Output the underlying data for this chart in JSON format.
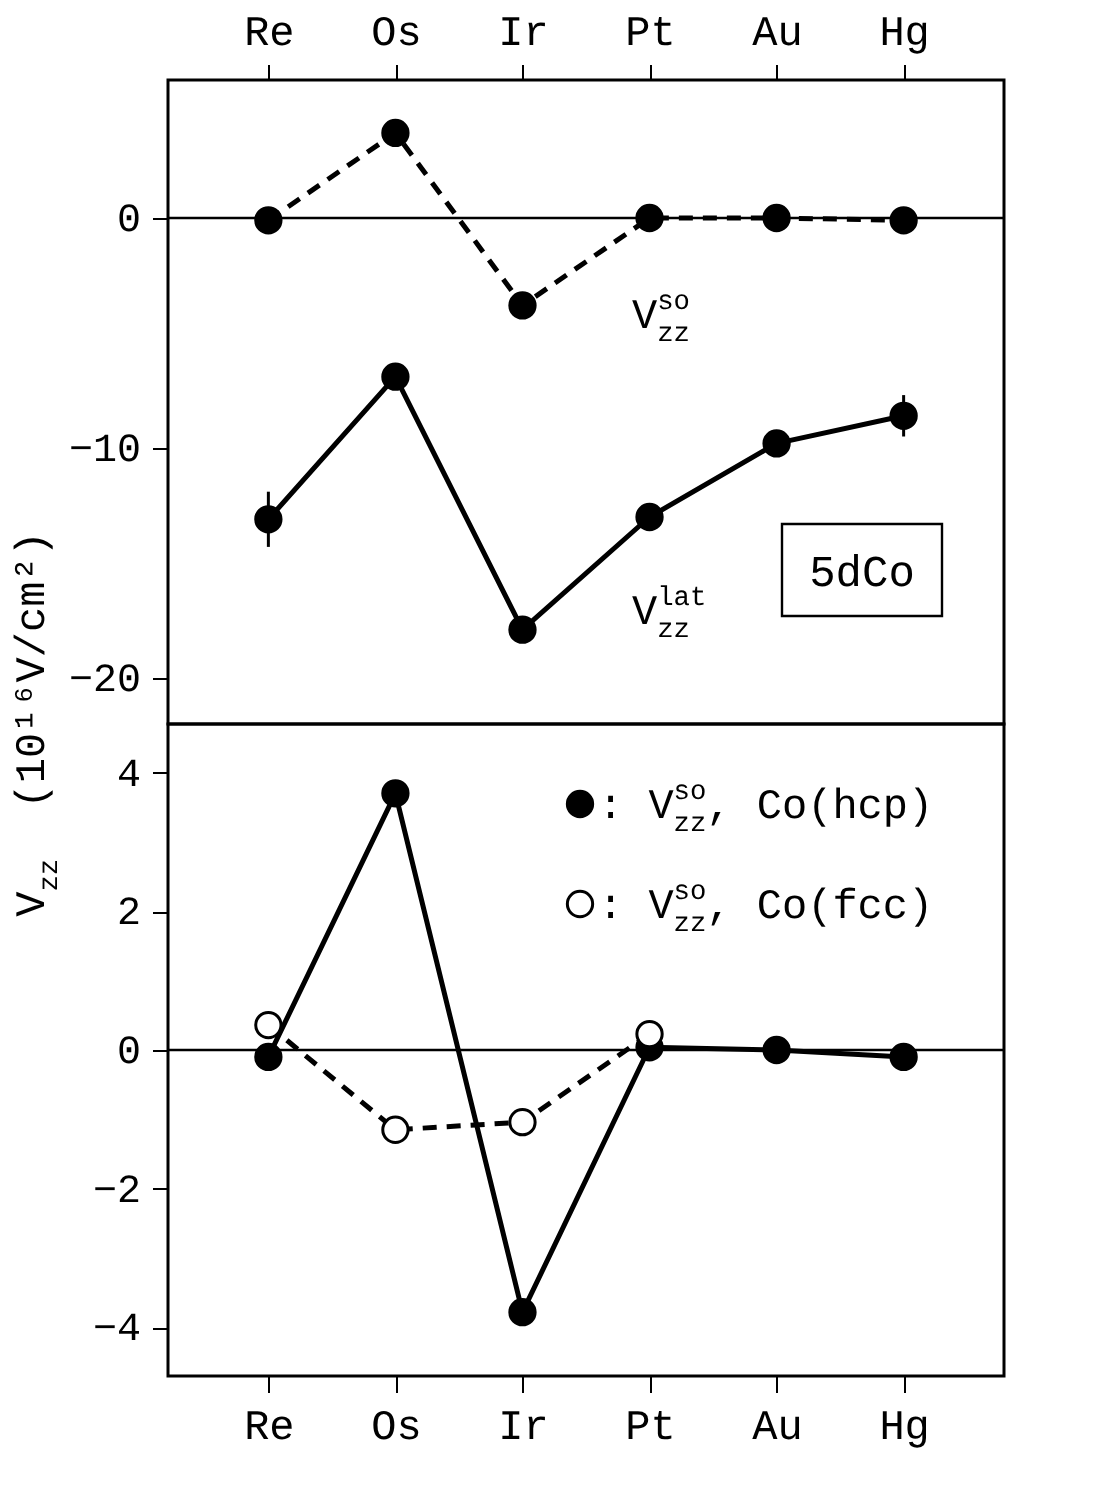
{
  "chart_data": [
    {
      "type": "line",
      "categories": [
        "Re",
        "Os",
        "Ir",
        "Pt",
        "Au",
        "Hg"
      ],
      "ylabel": "V$_{zz}$  (10¹⁶V/cm²)",
      "ylim": [
        -22,
        6
      ],
      "yticks": [
        -20,
        -10,
        0
      ],
      "grid": false,
      "legend": false,
      "ref_lines": [
        {
          "axis": "y",
          "value": 0,
          "color": "#000000"
        }
      ],
      "annotations": [
        "5dCo"
      ],
      "series": [
        {
          "name": "V$^{so}$$_{zz}$",
          "color": "#000000",
          "line_style": "dashed",
          "marker": "circle",
          "values": [
            -0.1,
            3.7,
            -3.8,
            0.0,
            0.0,
            -0.1
          ]
        },
        {
          "name": "V$^{lat}$$_{zz}$",
          "color": "#000000",
          "line_style": "solid",
          "marker": "circle",
          "values": [
            -13.1,
            -6.9,
            -17.9,
            -13.0,
            -9.8,
            -8.6
          ],
          "errors": [
            1.2,
            null,
            null,
            null,
            null,
            0.9
          ]
        }
      ]
    },
    {
      "type": "line",
      "categories": [
        "Re",
        "Os",
        "Ir",
        "Pt",
        "Au",
        "Hg"
      ],
      "ylim": [
        -4.7,
        4.7
      ],
      "yticks": [
        -4,
        -2,
        0,
        2,
        4
      ],
      "grid": false,
      "legend": "top right",
      "ref_lines": [
        {
          "axis": "y",
          "value": 0,
          "color": "#000000"
        }
      ],
      "series": [
        {
          "name": ": V$^{so}$$_{zz}$, Co(hcp)",
          "color": "#000000",
          "line_style": "solid",
          "marker": "circle",
          "values": [
            -0.1,
            3.7,
            -3.78,
            0.04,
            0.0,
            -0.1
          ]
        },
        {
          "name": ": V$^{so}$$_{zz}$, Co(fcc)",
          "color": "#000000",
          "line_style": "dashed",
          "marker": "circle",
          "values": [
            0.36,
            -1.15,
            -1.04,
            0.23,
            null,
            null
          ]
        }
      ]
    }
  ]
}
